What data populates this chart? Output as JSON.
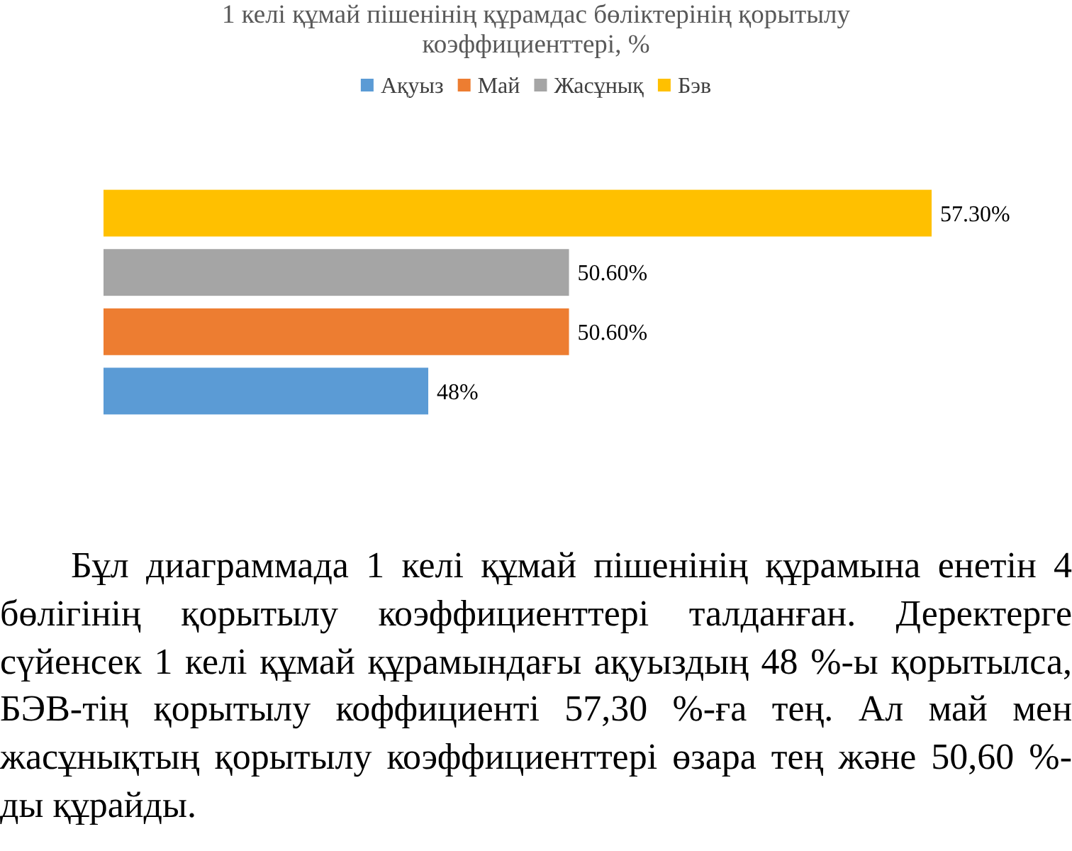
{
  "chart_data": {
    "type": "bar",
    "orientation": "horizontal",
    "title": "1 келі құмай пішенінің құрамдас бөліктерінің қорытылу коэффициенттері, %",
    "categories": [
      null
    ],
    "series": [
      {
        "name": "Бэв",
        "color": "#ffc000",
        "values": [
          57.3
        ],
        "value_labels": [
          "57.30%"
        ]
      },
      {
        "name": "Жасұнық",
        "color": "#a5a5a5",
        "values": [
          50.6
        ],
        "value_labels": [
          "50.60%"
        ]
      },
      {
        "name": "Май",
        "color": "#ed7d31",
        "values": [
          50.6
        ],
        "value_labels": [
          "50.60%"
        ]
      },
      {
        "name": "Ақуыз",
        "color": "#5b9bd5",
        "values": [
          48
        ],
        "value_labels": [
          "48%"
        ]
      }
    ],
    "xlim": [
      42,
      57.3
    ],
    "tick_labels": false,
    "legend": "top",
    "annotations": [
      "Бұл диаграммада 1 келі құмай пішенінің құрамына енетін 4 бөлігінің қорытылу коэффициенттері талданған. Деректерге сүйенсек 1 келі құмай құрамындағы ақуыздың 48 %-ы қорытылса, БЭВ-тің қорытылу коффициенті 57,30 %-ға тең. Ал май мен жасұнықтың қорытылу коэффициенттері өзара тең және 50,60 %-ды құрайды."
    ]
  }
}
